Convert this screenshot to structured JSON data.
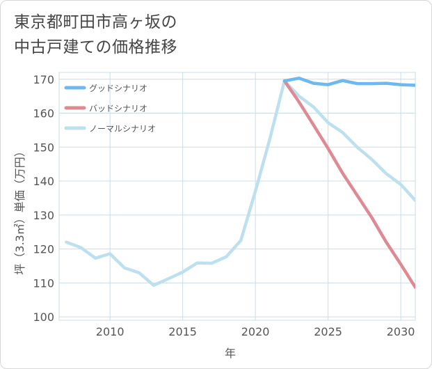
{
  "title": {
    "line1": "東京都町田市高ヶ坂の",
    "line2": "中古戸建ての価格推移"
  },
  "chart_data": {
    "type": "line",
    "xlabel": "年",
    "ylabel": "坪（3.3㎡）単価（万円）",
    "xlim": [
      2006.5,
      2031
    ],
    "ylim": [
      99,
      172
    ],
    "x_ticks": [
      2010,
      2015,
      2020,
      2025,
      2030
    ],
    "y_ticks": [
      100,
      110,
      120,
      130,
      140,
      150,
      160,
      170
    ],
    "x_tick_labels": [
      "2010",
      "2015",
      "2020",
      "2025",
      "2030"
    ],
    "y_tick_labels": [
      "100",
      "110",
      "120",
      "130",
      "140",
      "150",
      "160",
      "170"
    ],
    "grid": true,
    "legend_position": "top-left",
    "series": [
      {
        "name": "グッドシナリオ",
        "color": "#6cb8ef",
        "x": [
          2022,
          2023,
          2024,
          2025,
          2026,
          2027,
          2028,
          2029,
          2030,
          2031
        ],
        "values": [
          169.5,
          170.3,
          168.8,
          168.4,
          169.6,
          168.7,
          168.7,
          168.8,
          168.4,
          168.2
        ]
      },
      {
        "name": "バッドシナリオ",
        "color": "#de8a92",
        "x": [
          2022,
          2023,
          2024,
          2025,
          2026,
          2027,
          2028,
          2029,
          2030,
          2031
        ],
        "values": [
          169.5,
          163.3,
          156.5,
          149.6,
          142.3,
          135.8,
          129.3,
          122.0,
          115.5,
          108.7
        ]
      },
      {
        "name": "ノーマルシナリオ",
        "color": "#bde0ef",
        "x": [
          2007,
          2008,
          2009,
          2010,
          2011,
          2012,
          2013,
          2014,
          2015,
          2016,
          2017,
          2018,
          2019,
          2020,
          2021,
          2022,
          2023,
          2024,
          2025,
          2026,
          2027,
          2028,
          2029,
          2030,
          2031
        ],
        "values": [
          122.0,
          120.4,
          117.3,
          118.6,
          114.4,
          113.0,
          109.3,
          111.2,
          113.2,
          115.9,
          115.8,
          117.7,
          122.5,
          137.0,
          152.5,
          169.5,
          165.0,
          161.8,
          157.2,
          154.3,
          150.0,
          146.4,
          142.2,
          139.0,
          134.3
        ]
      }
    ]
  }
}
